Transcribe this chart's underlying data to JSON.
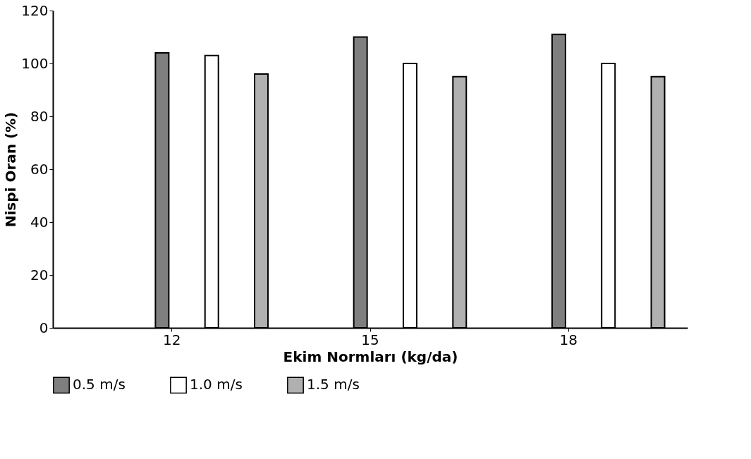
{
  "chart_data": {
    "type": "bar",
    "xlabel": "Ekim  Normları (kg/da)",
    "ylabel": "Nispi  Oran (%)",
    "categories": [
      "12",
      "15",
      "18"
    ],
    "series": [
      {
        "name": "0.5 m/s",
        "color": "#7f7f7f",
        "values": [
          104,
          110,
          111
        ]
      },
      {
        "name": "1.0 m/s",
        "color": "#ffffff",
        "values": [
          103,
          100,
          100
        ]
      },
      {
        "name": "1.5 m/s",
        "color": "#b0b0b0",
        "values": [
          96,
          95,
          95
        ]
      }
    ],
    "ylim": [
      0,
      120
    ],
    "yticks": [
      0,
      20,
      40,
      60,
      80,
      100,
      120
    ],
    "grid": false,
    "legend": "bottom"
  }
}
